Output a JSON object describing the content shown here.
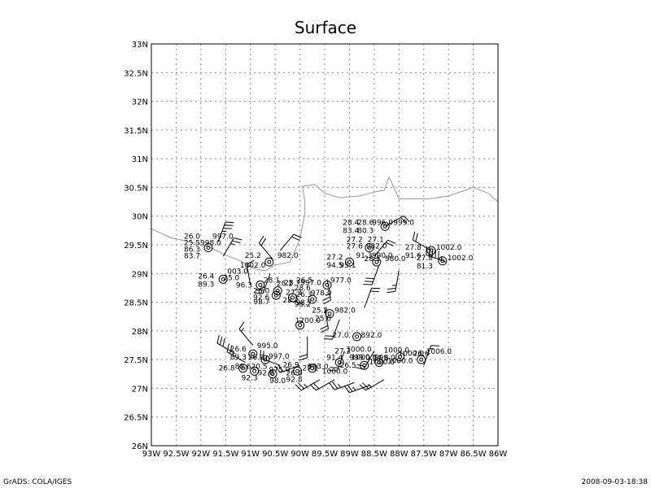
{
  "title": "Surface",
  "footer_left": "GrADS: COLA/IGES",
  "footer_right": "2008-09-03-18:38",
  "lat_labels": [
    "26N",
    "26.5N",
    "27N",
    "27.5N",
    "28N",
    "28.5N",
    "29N",
    "29.5N",
    "30N",
    "30.5N",
    "31N",
    "31.5N",
    "32N",
    "32.5N",
    "33N"
  ],
  "lon_labels": [
    "93W",
    "92.5W",
    "92W",
    "91.5W",
    "91W",
    "90.5W",
    "90W",
    "89.5W",
    "89W",
    "88.5W",
    "88W",
    "87.5W",
    "87W",
    "86.5W",
    "86W"
  ],
  "map": {
    "lon_range": [
      -93,
      -86
    ],
    "lat_range": [
      26,
      33
    ],
    "grid": true
  },
  "coastline": [
    [
      -93.0,
      29.78
    ],
    [
      -92.6,
      29.62
    ],
    [
      -92.2,
      29.55
    ],
    [
      -91.8,
      29.45
    ],
    [
      -91.5,
      29.32
    ],
    [
      -91.2,
      29.22
    ],
    [
      -90.9,
      29.08
    ],
    [
      -90.7,
      29.05
    ],
    [
      -90.5,
      29.15
    ],
    [
      -90.2,
      29.2
    ],
    [
      -90.0,
      29.6
    ],
    [
      -89.9,
      30.05
    ],
    [
      -89.9,
      30.26
    ],
    [
      -89.95,
      30.52
    ],
    [
      -89.7,
      30.55
    ],
    [
      -89.5,
      30.4
    ],
    [
      -89.2,
      30.32
    ],
    [
      -88.8,
      30.35
    ],
    [
      -88.5,
      30.42
    ],
    [
      -88.3,
      30.45
    ],
    [
      -88.2,
      30.68
    ],
    [
      -88.0,
      30.3
    ],
    [
      -87.4,
      30.3
    ],
    [
      -87.0,
      30.35
    ],
    [
      -86.5,
      30.5
    ],
    [
      -86.2,
      30.4
    ],
    [
      -86.0,
      30.25
    ]
  ],
  "stations": [
    {
      "lon": -91.85,
      "lat": 29.45,
      "labels": [
        {
          "dx": -30,
          "dy": -14,
          "t": "26.0"
        },
        {
          "dx": 5,
          "dy": -14,
          "t": "997.0"
        },
        {
          "dx": -30,
          "dy": -6,
          "t": "25.5"
        },
        {
          "dx": -10,
          "dy": -6,
          "t": "998.0"
        },
        {
          "dx": -30,
          "dy": 2,
          "t": "86.3"
        },
        {
          "dx": -30,
          "dy": 10,
          "t": "83.7"
        }
      ]
    },
    {
      "lon": -91.55,
      "lat": 28.9,
      "labels": [
        {
          "dx": -31,
          "dy": -4,
          "t": "26.4"
        },
        {
          "dx": 5,
          "dy": -10,
          "t": "003.0"
        },
        {
          "dx": -31,
          "dy": 6,
          "t": "89.3"
        },
        {
          "dx": 0,
          "dy": -2,
          "t": "25.0"
        }
      ]
    },
    {
      "lon": -90.8,
      "lat": 28.8,
      "labels": [
        {
          "dx": -30,
          "dy": 0,
          "t": "96.3"
        },
        {
          "dx": 4,
          "dy": -6,
          "t": "28.1"
        },
        {
          "dx": 20,
          "dy": -2,
          "t": "28.2"
        }
      ]
    },
    {
      "lon": -90.62,
      "lat": 29.2,
      "labels": [
        {
          "dx": -30,
          "dy": -8,
          "t": "25.2"
        },
        {
          "dx": 10,
          "dy": -8,
          "t": "982.0"
        },
        {
          "dx": -36,
          "dy": 4,
          "t": "1002.0"
        }
      ]
    },
    {
      "lon": -90.45,
      "lat": 28.7,
      "labels": [
        {
          "dx": -30,
          "dy": 0,
          "t": "26.0"
        },
        {
          "dx": -30,
          "dy": 8,
          "t": "92.6"
        },
        {
          "dx": 8,
          "dy": -10,
          "t": "28.7"
        },
        {
          "dx": 28,
          "dy": -10,
          "t": "997.0"
        },
        {
          "dx": 10,
          "dy": 2,
          "t": "27.3"
        }
      ]
    },
    {
      "lon": -90.48,
      "lat": 28.62,
      "labels": [
        {
          "dx": -28,
          "dy": 8,
          "t": "98.7"
        },
        {
          "dx": 8,
          "dy": 6,
          "t": "28.2"
        }
      ]
    },
    {
      "lon": -90.15,
      "lat": 28.58,
      "labels": [
        {
          "dx": 4,
          "dy": -4,
          "t": "26.3"
        },
        {
          "dx": 4,
          "dy": 6,
          "t": "98.7"
        }
      ]
    },
    {
      "lon": -89.75,
      "lat": 28.55,
      "labels": [
        {
          "dx": -22,
          "dy": -14,
          "t": "28.6"
        },
        {
          "dx": -2,
          "dy": -8,
          "t": "978.0"
        },
        {
          "dx": -22,
          "dy": 6,
          "t": "98.2"
        }
      ]
    },
    {
      "lon": -89.45,
      "lat": 28.8,
      "labels": [
        {
          "dx": -38,
          "dy": -6,
          "t": "26.5"
        },
        {
          "dx": 4,
          "dy": -6,
          "t": "977.0"
        }
      ]
    },
    {
      "lon": -89.4,
      "lat": 28.3,
      "labels": [
        {
          "dx": -22,
          "dy": -4,
          "t": "25.2"
        },
        {
          "dx": 6,
          "dy": -4,
          "t": "982.0"
        },
        {
          "dx": -18,
          "dy": 6,
          "t": "25.0"
        }
      ]
    },
    {
      "lon": -90.0,
      "lat": 28.1,
      "labels": [
        {
          "dx": -6,
          "dy": -6,
          "t": "1200.0"
        }
      ]
    },
    {
      "lon": -88.85,
      "lat": 27.9,
      "labels": [
        {
          "dx": -30,
          "dy": -2,
          "t": "27.0"
        },
        {
          "dx": 5,
          "dy": -2,
          "t": "892.0"
        }
      ]
    },
    {
      "lon": -88.28,
      "lat": 29.82,
      "labels": [
        {
          "dx": -52,
          "dy": -5,
          "t": "28.4"
        },
        {
          "dx": -34,
          "dy": -5,
          "t": "28.6"
        },
        {
          "dx": -16,
          "dy": -5,
          "t": "996.0"
        },
        {
          "dx": 10,
          "dy": -5,
          "t": "999.0"
        },
        {
          "dx": -52,
          "dy": 5,
          "t": "83.4"
        },
        {
          "dx": -34,
          "dy": 5,
          "t": "80.3"
        }
      ]
    },
    {
      "lon": -88.6,
      "lat": 29.45,
      "labels": [
        {
          "dx": -28,
          "dy": -10,
          "t": "27.2"
        },
        {
          "dx": -2,
          "dy": -10,
          "t": "27.1"
        },
        {
          "dx": -28,
          "dy": -2,
          "t": "27.6"
        },
        {
          "dx": -4,
          "dy": -2,
          "t": "982.0"
        }
      ]
    },
    {
      "lon": -89.0,
      "lat": 29.2,
      "labels": [
        {
          "dx": -28,
          "dy": -6,
          "t": "27.2"
        },
        {
          "dx": -28,
          "dy": 4,
          "t": "94.5"
        },
        {
          "dx": -12,
          "dy": 4,
          "t": "95.1"
        },
        {
          "dx": 8,
          "dy": -8,
          "t": "91.3"
        },
        {
          "dx": 18,
          "dy": -4,
          "t": "28.1"
        }
      ]
    },
    {
      "lon": -88.45,
      "lat": 29.2,
      "labels": [
        {
          "dx": -6,
          "dy": -8,
          "t": "990.0"
        },
        {
          "dx": 10,
          "dy": -4,
          "t": "980.0"
        }
      ]
    },
    {
      "lon": -87.35,
      "lat": 29.4,
      "labels": [
        {
          "dx": -32,
          "dy": -4,
          "t": "27.8"
        },
        {
          "dx": 6,
          "dy": -4,
          "t": "1002.0"
        },
        {
          "dx": -32,
          "dy": 6,
          "t": "91.6"
        }
      ]
    },
    {
      "lon": -87.12,
      "lat": 29.22,
      "labels": [
        {
          "dx": -32,
          "dy": -4,
          "t": "27.8"
        },
        {
          "dx": 6,
          "dy": -4,
          "t": "1002.0"
        },
        {
          "dx": -32,
          "dy": 6,
          "t": "81.3"
        }
      ]
    },
    {
      "lon": -90.95,
      "lat": 27.6,
      "labels": [
        {
          "dx": -28,
          "dy": -6,
          "t": "26.6"
        },
        {
          "dx": 5,
          "dy": -10,
          "t": "995.0"
        },
        {
          "dx": -28,
          "dy": 4,
          "t": "89.3"
        },
        {
          "dx": -6,
          "dy": 4,
          "t": "26.0"
        }
      ]
    },
    {
      "lon": -90.7,
      "lat": 27.5,
      "labels": [
        {
          "dx": 4,
          "dy": -4,
          "t": "997.0"
        }
      ]
    },
    {
      "lon": -91.15,
      "lat": 27.35,
      "labels": [
        {
          "dx": -30,
          "dy": 0,
          "t": "26.8"
        },
        {
          "dx": -10,
          "dy": -2,
          "t": "88.6"
        },
        {
          "dx": 10,
          "dy": -2,
          "t": "20.5"
        }
      ]
    },
    {
      "lon": -90.92,
      "lat": 27.3,
      "labels": [
        {
          "dx": -16,
          "dy": 8,
          "t": "92.3"
        },
        {
          "dx": 4,
          "dy": 2,
          "t": "92.0"
        },
        {
          "dx": 18,
          "dy": -2,
          "t": "975.0"
        }
      ]
    },
    {
      "lon": -90.55,
      "lat": 27.25,
      "labels": [
        {
          "dx": -4,
          "dy": 8,
          "t": "98.0"
        }
      ]
    },
    {
      "lon": -90.05,
      "lat": 27.3,
      "labels": [
        {
          "dx": -18,
          "dy": -8,
          "t": "26.9"
        },
        {
          "dx": -14,
          "dy": 2,
          "t": "26.0"
        },
        {
          "dx": -14,
          "dy": 10,
          "t": "92.8"
        },
        {
          "dx": 6,
          "dy": -4,
          "t": "27.2"
        }
      ]
    },
    {
      "lon": -89.75,
      "lat": 27.35,
      "labels": [
        {
          "dx": -6,
          "dy": -2,
          "t": "993.0"
        },
        {
          "dx": 12,
          "dy": 4,
          "t": "1000.0"
        }
      ]
    },
    {
      "lon": -89.2,
      "lat": 27.45,
      "labels": [
        {
          "dx": -6,
          "dy": -14,
          "t": "27.2"
        },
        {
          "dx": 8,
          "dy": -16,
          "t": "1000.0"
        },
        {
          "dx": -16,
          "dy": -6,
          "t": "91.4"
        },
        {
          "dx": 12,
          "dy": -6,
          "t": "999.0"
        }
      ]
    },
    {
      "lon": -88.7,
      "lat": 27.4,
      "labels": [
        {
          "dx": -16,
          "dy": -10,
          "t": "1000.0"
        },
        {
          "dx": 6,
          "dy": -4,
          "t": "1000.0"
        },
        {
          "dx": -30,
          "dy": 0,
          "t": "26.5"
        }
      ]
    },
    {
      "lon": -88.4,
      "lat": 27.45,
      "labels": [
        {
          "dx": -6,
          "dy": -6,
          "t": "999.0"
        },
        {
          "dx": 10,
          "dy": -2,
          "t": "1000.0"
        }
      ]
    },
    {
      "lon": -87.98,
      "lat": 27.55,
      "labels": [
        {
          "dx": -20,
          "dy": -8,
          "t": "1000.0"
        },
        {
          "dx": -2,
          "dy": -4,
          "t": "1000.0"
        },
        {
          "dx": -34,
          "dy": 2,
          "t": "27.6"
        },
        {
          "dx": 16,
          "dy": -4,
          "t": "26.6"
        }
      ]
    },
    {
      "lon": -87.55,
      "lat": 27.5,
      "labels": [
        {
          "dx": 6,
          "dy": -10,
          "t": "1006.0"
        }
      ]
    }
  ],
  "barbs": [
    {
      "lon": -91.65,
      "lat": 29.55,
      "dir": 20,
      "spd": 35
    },
    {
      "lon": -91.55,
      "lat": 29.3,
      "dir": 30,
      "spd": 25
    },
    {
      "lon": -90.6,
      "lat": 29.0,
      "dir": 200,
      "spd": 25
    },
    {
      "lon": -90.55,
      "lat": 29.25,
      "dir": 320,
      "spd": 20
    },
    {
      "lon": -90.4,
      "lat": 29.4,
      "dir": 40,
      "spd": 20
    },
    {
      "lon": -91.0,
      "lat": 28.8,
      "dir": 350,
      "spd": 15
    },
    {
      "lon": -89.45,
      "lat": 28.9,
      "dir": 170,
      "spd": 25
    },
    {
      "lon": -89.5,
      "lat": 28.4,
      "dir": 170,
      "spd": 20
    },
    {
      "lon": -89.2,
      "lat": 28.2,
      "dir": 200,
      "spd": 20
    },
    {
      "lon": -89.85,
      "lat": 27.9,
      "dir": 180,
      "spd": 20
    },
    {
      "lon": -88.7,
      "lat": 28.4,
      "dir": 20,
      "spd": 20
    },
    {
      "lon": -88.4,
      "lat": 29.15,
      "dir": 200,
      "spd": 30
    },
    {
      "lon": -88.0,
      "lat": 29.05,
      "dir": 190,
      "spd": 25
    },
    {
      "lon": -87.05,
      "lat": 29.2,
      "dir": 290,
      "spd": 55
    },
    {
      "lon": -87.35,
      "lat": 29.4,
      "dir": 300,
      "spd": 20
    },
    {
      "lon": -88.28,
      "lat": 29.82,
      "dir": 60,
      "spd": 20
    },
    {
      "lon": -88.5,
      "lat": 29.3,
      "dir": 40,
      "spd": 20
    },
    {
      "lon": -91.3,
      "lat": 27.6,
      "dir": 300,
      "spd": 30
    },
    {
      "lon": -91.1,
      "lat": 27.45,
      "dir": 300,
      "spd": 25
    },
    {
      "lon": -90.95,
      "lat": 27.75,
      "dir": 320,
      "spd": 15
    },
    {
      "lon": -90.4,
      "lat": 27.4,
      "dir": 290,
      "spd": 25
    },
    {
      "lon": -90.0,
      "lat": 27.4,
      "dir": 250,
      "spd": 20
    },
    {
      "lon": -89.6,
      "lat": 27.15,
      "dir": 240,
      "spd": 25
    },
    {
      "lon": -89.3,
      "lat": 27.15,
      "dir": 240,
      "spd": 20
    },
    {
      "lon": -88.9,
      "lat": 27.1,
      "dir": 250,
      "spd": 25
    },
    {
      "lon": -88.6,
      "lat": 27.05,
      "dir": 250,
      "spd": 25
    },
    {
      "lon": -88.3,
      "lat": 27.15,
      "dir": 240,
      "spd": 25
    },
    {
      "lon": -87.5,
      "lat": 27.4,
      "dir": 20,
      "spd": 15
    },
    {
      "lon": -89.1,
      "lat": 27.65,
      "dir": 200,
      "spd": 20
    },
    {
      "lon": -88.5,
      "lat": 27.65,
      "dir": 210,
      "spd": 20
    }
  ]
}
